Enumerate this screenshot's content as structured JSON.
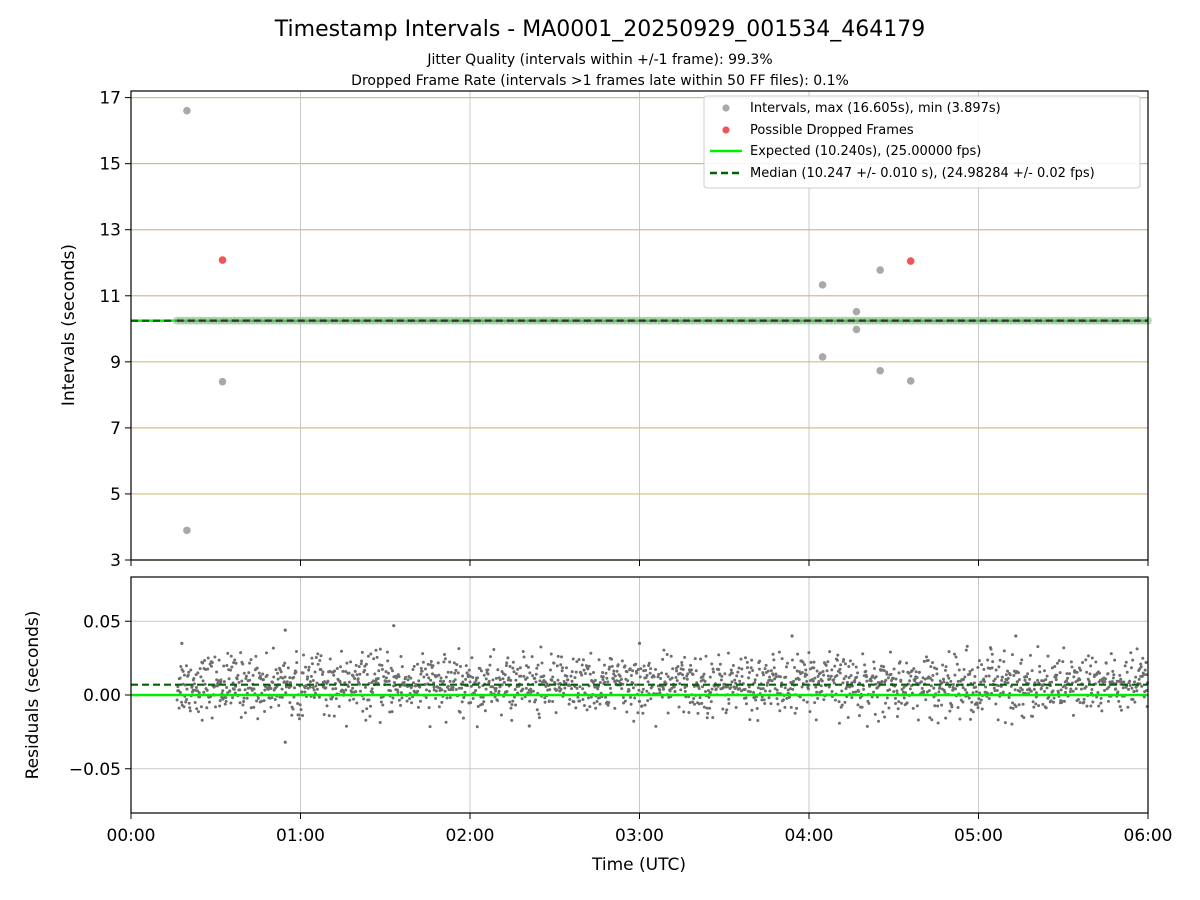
{
  "chart_data": {
    "type": "scatter",
    "title": "Timestamp Intervals - MA0001_20250929_001534_464179",
    "subtitle_lines": [
      "Jitter Quality (intervals within +/-1 frame): 99.3%",
      "Dropped Frame Rate (intervals >1 frames late within 50 FF files): 0.1%"
    ],
    "x": {
      "label": "Time (UTC)",
      "range_hours": [
        0,
        6
      ],
      "ticks": [
        {
          "value": 0,
          "label": "00:00"
        },
        {
          "value": 1,
          "label": "01:00"
        },
        {
          "value": 2,
          "label": "02:00"
        },
        {
          "value": 3,
          "label": "03:00"
        },
        {
          "value": 4,
          "label": "04:00"
        },
        {
          "value": 5,
          "label": "05:00"
        },
        {
          "value": 6,
          "label": "06:00"
        }
      ]
    },
    "top": {
      "ylabel": "Intervals (seconds)",
      "ylim": [
        3,
        17.2
      ],
      "yticks": [
        3,
        5,
        7,
        9,
        11,
        13,
        15,
        17
      ],
      "hgrid_color": "#d4bf7a",
      "vgrid_color": "#c8c8c8",
      "expected": 10.24,
      "median": 10.247,
      "band_start_hour": 0.27,
      "band_end_hour": 6.0,
      "interval_points": [
        {
          "t": 0.33,
          "v": 16.605
        },
        {
          "t": 0.33,
          "v": 3.897
        },
        {
          "t": 0.54,
          "v": 8.4
        },
        {
          "t": 4.08,
          "v": 11.33
        },
        {
          "t": 4.08,
          "v": 9.15
        },
        {
          "t": 4.28,
          "v": 10.52
        },
        {
          "t": 4.28,
          "v": 9.98
        },
        {
          "t": 4.42,
          "v": 11.78
        },
        {
          "t": 4.42,
          "v": 8.73
        },
        {
          "t": 4.6,
          "v": 8.42
        }
      ],
      "dropped_points": [
        {
          "t": 0.54,
          "v": 12.08
        },
        {
          "t": 4.6,
          "v": 12.05
        }
      ],
      "legend": {
        "placement": "top-right",
        "entries": [
          {
            "kind": "point",
            "color": "#a9a9a9",
            "label": "Intervals, max (16.605s), min (3.897s)"
          },
          {
            "kind": "point",
            "color": "#f25555",
            "label": "Possible Dropped Frames"
          },
          {
            "kind": "line",
            "color": "#00ee00",
            "label": "Expected (10.240s), (25.00000 fps)"
          },
          {
            "kind": "dashed",
            "color": "#006400",
            "label": "Median (10.247 +/- 0.010 s), (24.98284 +/- 0.02 fps)"
          }
        ]
      }
    },
    "bottom": {
      "ylabel": "Residuals (seconds)",
      "ylim": [
        -0.08,
        0.08
      ],
      "yticks": [
        {
          "value": 0.05,
          "label": "0.05"
        },
        {
          "value": 0.0,
          "label": "0.00"
        },
        {
          "value": -0.05,
          "label": "−0.05"
        }
      ],
      "expected": 0.0,
      "median": 0.007,
      "residual_center": 0.007,
      "residual_spread": 0.01,
      "residual_count": 2000,
      "residual_start_hour": 0.27,
      "residual_end_hour": 6.0,
      "residual_outliers": [
        {
          "t": 0.91,
          "v": 0.044
        },
        {
          "t": 0.91,
          "v": -0.032
        },
        {
          "t": 1.55,
          "v": 0.047
        },
        {
          "t": 0.3,
          "v": 0.035
        },
        {
          "t": 2.35,
          "v": -0.021
        },
        {
          "t": 3.9,
          "v": 0.04
        },
        {
          "t": 5.22,
          "v": 0.04
        },
        {
          "t": 3.0,
          "v": 0.035
        }
      ],
      "colors": {
        "points": "#6e6e6e",
        "expected": "#00ee00",
        "median": "#006400",
        "grid": "#c8c8c8"
      }
    }
  }
}
